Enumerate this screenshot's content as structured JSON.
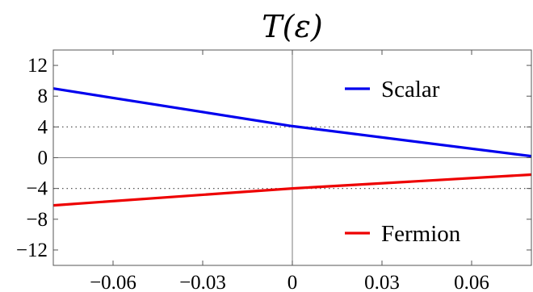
{
  "chart_data": {
    "type": "line",
    "title": "T(ε)",
    "xlabel": "",
    "ylabel": "",
    "xlim": [
      -0.08,
      0.08
    ],
    "ylim": [
      -14,
      14
    ],
    "x_ticks": [
      -0.06,
      -0.03,
      0,
      0.03,
      0.06
    ],
    "x_tick_labels": [
      "−0.06",
      "−0.03",
      "0",
      "0.03",
      "0.06"
    ],
    "y_ticks": [
      12,
      8,
      4,
      0,
      -4,
      -8,
      -12
    ],
    "y_tick_labels": [
      "12",
      "8",
      "4",
      "0",
      "−4",
      "−8",
      "−12"
    ],
    "reference_lines": [
      {
        "axis": "y",
        "value": 4,
        "style": "dotted"
      },
      {
        "axis": "y",
        "value": -4,
        "style": "dotted"
      },
      {
        "axis": "y",
        "value": 0,
        "style": "solid"
      },
      {
        "axis": "x",
        "value": 0,
        "style": "solid"
      }
    ],
    "legend_position": "right",
    "series": [
      {
        "name": "Scalar",
        "color": "#0000ee",
        "x": [
          -0.08,
          0,
          0.08
        ],
        "y": [
          9.0,
          4.1,
          0.2
        ]
      },
      {
        "name": "Fermion",
        "color": "#ee0000",
        "x": [
          -0.08,
          0,
          0.08
        ],
        "y": [
          -6.2,
          -4.0,
          -2.2
        ]
      }
    ]
  }
}
